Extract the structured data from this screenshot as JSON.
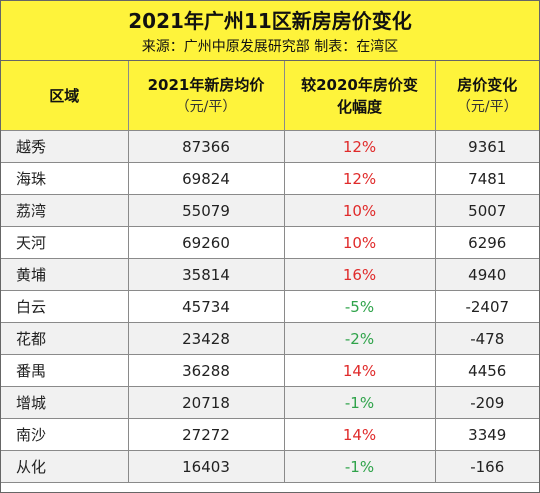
{
  "title": "2021年广州11区新房房价变化",
  "subtitle": "来源：广州中原发展研究部  制表：在湾区",
  "columns": [
    {
      "label": "区域",
      "unit": ""
    },
    {
      "label": "2021年新房均价",
      "unit": "（元/平）"
    },
    {
      "label": "较2020年房价变",
      "label2": "化幅度",
      "unit": ""
    },
    {
      "label": "房价变化",
      "unit": "（元/平）"
    }
  ],
  "rows": [
    {
      "district": "越秀",
      "price": "87366",
      "change_pct": "12%",
      "change_val": "9361",
      "trend": "up"
    },
    {
      "district": "海珠",
      "price": "69824",
      "change_pct": "12%",
      "change_val": "7481",
      "trend": "up"
    },
    {
      "district": "荔湾",
      "price": "55079",
      "change_pct": "10%",
      "change_val": "5007",
      "trend": "up"
    },
    {
      "district": "天河",
      "price": "69260",
      "change_pct": "10%",
      "change_val": "6296",
      "trend": "up"
    },
    {
      "district": "黄埔",
      "price": "35814",
      "change_pct": "16%",
      "change_val": "4940",
      "trend": "up"
    },
    {
      "district": "白云",
      "price": "45734",
      "change_pct": "-5%",
      "change_val": "-2407",
      "trend": "down"
    },
    {
      "district": "花都",
      "price": "23428",
      "change_pct": "-2%",
      "change_val": "-478",
      "trend": "down"
    },
    {
      "district": "番禺",
      "price": "36288",
      "change_pct": "14%",
      "change_val": "4456",
      "trend": "up"
    },
    {
      "district": "增城",
      "price": "20718",
      "change_pct": "-1%",
      "change_val": "-209",
      "trend": "down"
    },
    {
      "district": "南沙",
      "price": "27272",
      "change_pct": "14%",
      "change_val": "3349",
      "trend": "up"
    },
    {
      "district": "从化",
      "price": "16403",
      "change_pct": "-1%",
      "change_val": "-166",
      "trend": "down"
    }
  ],
  "colors": {
    "header_bg": "#fef33b",
    "positive": "#e02a2a",
    "negative": "#2fa34a",
    "stripe": "#f1f1f1"
  }
}
